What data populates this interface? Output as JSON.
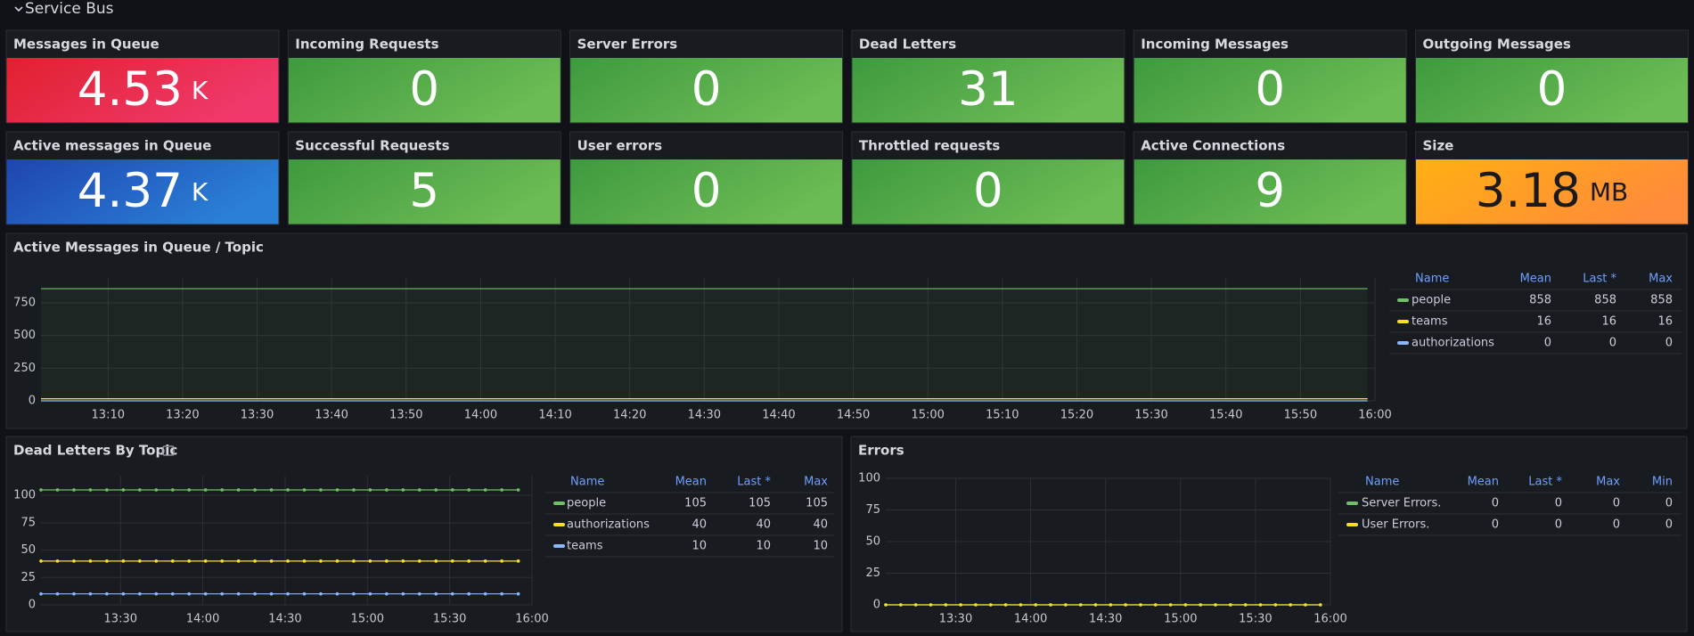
{
  "section": "Service Bus",
  "stats": [
    {
      "title": "Messages in Queue",
      "value": 4.53,
      "unit": "K",
      "colors": [
        "#e0212e",
        "#f0386a"
      ],
      "text_color": "#ffffff"
    },
    {
      "title": "Incoming Requests",
      "value": 0,
      "colors": [
        "#3e9a3f",
        "#6cbb54"
      ],
      "text_color": "#ffffff"
    },
    {
      "title": "Server Errors",
      "value": 0,
      "colors": [
        "#3e9a3f",
        "#6cbb54"
      ],
      "text_color": "#ffffff"
    },
    {
      "title": "Dead Letters",
      "value": 31,
      "colors": [
        "#3e9a3f",
        "#6cbb54"
      ],
      "text_color": "#ffffff"
    },
    {
      "title": "Incoming Messages",
      "value": 0,
      "colors": [
        "#3e9a3f",
        "#6cbb54"
      ],
      "text_color": "#ffffff"
    },
    {
      "title": "Outgoing Messages",
      "value": 0,
      "colors": [
        "#3e9a3f",
        "#6cbb54"
      ],
      "text_color": "#ffffff"
    },
    {
      "title": "Active messages in Queue",
      "value": 4.37,
      "unit": "K",
      "colors": [
        "#1f45b0",
        "#2a7fd6"
      ],
      "text_color": "#ffffff"
    },
    {
      "title": "Successful Requests",
      "value": 5,
      "colors": [
        "#3e9a3f",
        "#6cbb54"
      ],
      "text_color": "#ffffff"
    },
    {
      "title": "User errors",
      "value": 0,
      "colors": [
        "#3e9a3f",
        "#6cbb54"
      ],
      "text_color": "#ffffff"
    },
    {
      "title": "Throttled requests",
      "value": 0,
      "colors": [
        "#3e9a3f",
        "#6cbb54"
      ],
      "text_color": "#ffffff"
    },
    {
      "title": "Active Connections",
      "value": 9,
      "colors": [
        "#3e9a3f",
        "#6cbb54"
      ],
      "text_color": "#ffffff"
    },
    {
      "title": "Size",
      "value": 3.18,
      "unit": "MB",
      "colors": [
        "#ffb013",
        "#ff8c38"
      ],
      "text_color": "#1a1a1a"
    }
  ],
  "chart_data": [
    {
      "type": "line",
      "title": "Active Messages in Queue / Topic",
      "x": [
        "13:01",
        "15:59"
      ],
      "xlim": [
        "13:01",
        "16:00"
      ],
      "xticks": [
        "13:10",
        "13:20",
        "13:30",
        "13:40",
        "13:50",
        "14:00",
        "14:10",
        "14:20",
        "14:30",
        "14:40",
        "14:50",
        "15:00",
        "15:10",
        "15:20",
        "15:30",
        "15:40",
        "15:50",
        "16:00"
      ],
      "ylim": [
        0,
        940
      ],
      "yticks": [
        0,
        250,
        500,
        750
      ],
      "grid": true,
      "fill_area": true,
      "points": false,
      "legend_columns": [
        "Name",
        "Mean",
        "Last *",
        "Max"
      ],
      "series": [
        {
          "name": "people",
          "color": "#73bf69",
          "values": [
            858,
            858
          ],
          "stats": [
            858,
            858,
            858
          ]
        },
        {
          "name": "teams",
          "color": "#fade2a",
          "values": [
            16,
            16
          ],
          "stats": [
            16,
            16,
            16
          ]
        },
        {
          "name": "authorizations",
          "color": "#8ab8ff",
          "values": [
            0,
            0
          ],
          "stats": [
            0,
            0,
            0
          ]
        }
      ]
    },
    {
      "type": "line",
      "title": "Dead Letters By Topic",
      "x": [
        "13:01",
        "13:07",
        "13:13",
        "13:19",
        "13:25",
        "13:31",
        "13:37",
        "13:43",
        "13:49",
        "13:55",
        "14:01",
        "14:07",
        "14:13",
        "14:19",
        "14:25",
        "14:31",
        "14:37",
        "14:43",
        "14:49",
        "14:55",
        "15:01",
        "15:07",
        "15:13",
        "15:19",
        "15:25",
        "15:31",
        "15:37",
        "15:43",
        "15:49",
        "15:55"
      ],
      "xlim": [
        "13:01",
        "16:00"
      ],
      "xticks": [
        "13:30",
        "14:00",
        "14:30",
        "15:00",
        "15:30",
        "16:00"
      ],
      "ylim": [
        0,
        118
      ],
      "yticks": [
        0,
        25,
        50,
        75,
        100
      ],
      "grid": true,
      "fill_area": false,
      "points": true,
      "legend_columns": [
        "Name",
        "Mean",
        "Last *",
        "Max"
      ],
      "series": [
        {
          "name": "people",
          "color": "#73bf69",
          "values": [
            105,
            105,
            105,
            105,
            105,
            105,
            105,
            105,
            105,
            105,
            105,
            105,
            105,
            105,
            105,
            105,
            105,
            105,
            105,
            105,
            105,
            105,
            105,
            105,
            105,
            105,
            105,
            105,
            105,
            105
          ],
          "stats": [
            105,
            105,
            105
          ]
        },
        {
          "name": "authorizations",
          "color": "#fade2a",
          "values": [
            40,
            40,
            40,
            40,
            40,
            40,
            40,
            40,
            40,
            40,
            40,
            40,
            40,
            40,
            40,
            40,
            40,
            40,
            40,
            40,
            40,
            40,
            40,
            40,
            40,
            40,
            40,
            40,
            40,
            40
          ],
          "stats": [
            40,
            40,
            40
          ]
        },
        {
          "name": "teams",
          "color": "#8ab8ff",
          "values": [
            10,
            10,
            10,
            10,
            10,
            10,
            10,
            10,
            10,
            10,
            10,
            10,
            10,
            10,
            10,
            10,
            10,
            10,
            10,
            10,
            10,
            10,
            10,
            10,
            10,
            10,
            10,
            10,
            10,
            10
          ],
          "stats": [
            10,
            10,
            10
          ]
        }
      ]
    },
    {
      "type": "line",
      "title": "Errors",
      "x": [
        "13:02",
        "13:08",
        "13:14",
        "13:20",
        "13:26",
        "13:32",
        "13:38",
        "13:44",
        "13:50",
        "13:56",
        "14:02",
        "14:08",
        "14:14",
        "14:20",
        "14:26",
        "14:32",
        "14:38",
        "14:44",
        "14:50",
        "14:56",
        "15:02",
        "15:08",
        "15:14",
        "15:20",
        "15:26",
        "15:32",
        "15:38",
        "15:44",
        "15:50",
        "15:56"
      ],
      "xlim": [
        "13:02",
        "16:00"
      ],
      "xticks": [
        "13:30",
        "14:00",
        "14:30",
        "15:00",
        "15:30",
        "16:00"
      ],
      "ylim": [
        0,
        100
      ],
      "yticks": [
        0,
        25,
        50,
        75,
        100
      ],
      "grid": true,
      "fill_area": false,
      "points": true,
      "legend_columns": [
        "Name",
        "Mean",
        "Last *",
        "Max",
        "Min"
      ],
      "series": [
        {
          "name": "Server Errors.",
          "color": "#73bf69",
          "values": [
            0,
            0,
            0,
            0,
            0,
            0,
            0,
            0,
            0,
            0,
            0,
            0,
            0,
            0,
            0,
            0,
            0,
            0,
            0,
            0,
            0,
            0,
            0,
            0,
            0,
            0,
            0,
            0,
            0,
            0
          ],
          "stats": [
            0,
            0,
            0,
            0
          ]
        },
        {
          "name": "User Errors.",
          "color": "#fade2a",
          "values": [
            0,
            0,
            0,
            0,
            0,
            0,
            0,
            0,
            0,
            0,
            0,
            0,
            0,
            0,
            0,
            0,
            0,
            0,
            0,
            0,
            0,
            0,
            0,
            0,
            0,
            0,
            0,
            0,
            0,
            0
          ],
          "stats": [
            0,
            0,
            0,
            0
          ]
        }
      ]
    }
  ]
}
